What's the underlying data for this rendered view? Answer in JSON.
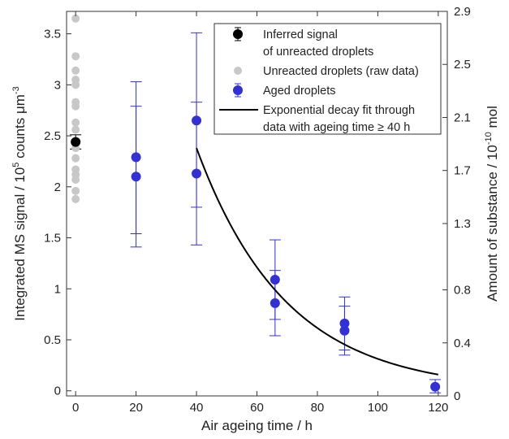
{
  "chart_data": {
    "type": "scatter",
    "title": "",
    "xlabel": "Air ageing time / h",
    "ylabel": "Integrated MS signal / 10^5 counts μm^-3",
    "ylabel_parts": {
      "pre": "Integrated MS signal / 10",
      "sup1": "5",
      "mid": " counts μm",
      "sup2": "-3"
    },
    "y2label": "Amount of substance / 10^-10 mol",
    "y2label_parts": {
      "pre": "Amount of substance / 10",
      "sup": "-10",
      "post": " mol"
    },
    "xlim": [
      -3,
      123
    ],
    "ylim": [
      -0.05,
      3.72
    ],
    "y2lim": [
      0,
      2.9
    ],
    "xticks": [
      {
        "value": 0,
        "label": "0"
      },
      {
        "value": 20,
        "label": "20"
      },
      {
        "value": 40,
        "label": "40"
      },
      {
        "value": 60,
        "label": "60"
      },
      {
        "value": 80,
        "label": "80"
      },
      {
        "value": 100,
        "label": "100"
      },
      {
        "value": 120,
        "label": "120"
      }
    ],
    "yticks": [
      {
        "value": 0,
        "label": "0"
      },
      {
        "value": 0.5,
        "label": "0.5"
      },
      {
        "value": 1,
        "label": "1"
      },
      {
        "value": 1.5,
        "label": "1.5"
      },
      {
        "value": 2,
        "label": "2"
      },
      {
        "value": 2.5,
        "label": "2.5"
      },
      {
        "value": 3,
        "label": "3"
      },
      {
        "value": 3.5,
        "label": "3.5"
      }
    ],
    "y2ticks": [
      {
        "value": 0,
        "label": "0"
      },
      {
        "value": 0.4,
        "label": "0.4"
      },
      {
        "value": 0.8,
        "label": "0.8"
      },
      {
        "value": 1.3,
        "label": "1.3"
      },
      {
        "value": 1.7,
        "label": "1.7"
      },
      {
        "value": 2.1,
        "label": "2.1"
      },
      {
        "value": 2.5,
        "label": "2.5"
      },
      {
        "value": 2.9,
        "label": "2.9"
      }
    ],
    "grid": false,
    "legend_position": "top-right",
    "series": [
      {
        "name": "Unreacted droplets (raw data)",
        "kind": "points",
        "color": "#c8c8c8",
        "points": [
          {
            "x": 0,
            "y": 3.65
          },
          {
            "x": 0,
            "y": 3.28
          },
          {
            "x": 0,
            "y": 3.14
          },
          {
            "x": 0,
            "y": 3.05
          },
          {
            "x": 0,
            "y": 3.0
          },
          {
            "x": 0,
            "y": 2.83
          },
          {
            "x": 0,
            "y": 2.79
          },
          {
            "x": 0,
            "y": 2.63
          },
          {
            "x": 0,
            "y": 2.56
          },
          {
            "x": 0,
            "y": 2.43
          },
          {
            "x": 0,
            "y": 2.38
          },
          {
            "x": 0,
            "y": 2.28
          },
          {
            "x": 0,
            "y": 2.17
          },
          {
            "x": 0,
            "y": 2.12
          },
          {
            "x": 0,
            "y": 2.07
          },
          {
            "x": 0,
            "y": 1.96
          },
          {
            "x": 0,
            "y": 1.88
          }
        ]
      },
      {
        "name": "Inferred signal of unreacted droplets",
        "legend_lines": [
          "Inferred signal",
          "of unreacted droplets"
        ],
        "kind": "points_with_error",
        "color": "#000000",
        "points": [
          {
            "x": 0,
            "y": 2.44,
            "err_low": 2.37,
            "err_high": 2.51
          }
        ]
      },
      {
        "name": "Aged droplets",
        "kind": "points_with_error",
        "color": "#3232d2",
        "points": [
          {
            "x": 20,
            "y": 2.29,
            "err_low": 1.54,
            "err_high": 3.03
          },
          {
            "x": 20,
            "y": 2.1,
            "err_low": 1.41,
            "err_high": 2.79
          },
          {
            "x": 40,
            "y": 2.65,
            "err_low": 1.8,
            "err_high": 3.51
          },
          {
            "x": 40,
            "y": 2.13,
            "err_low": 1.43,
            "err_high": 2.83
          },
          {
            "x": 66,
            "y": 1.09,
            "err_low": 0.7,
            "err_high": 1.48
          },
          {
            "x": 66,
            "y": 0.86,
            "err_low": 0.54,
            "err_high": 1.18
          },
          {
            "x": 89,
            "y": 0.66,
            "err_low": 0.4,
            "err_high": 0.92
          },
          {
            "x": 89,
            "y": 0.59,
            "err_low": 0.35,
            "err_high": 0.83
          },
          {
            "x": 119,
            "y": 0.04,
            "err_low": -0.02,
            "err_high": 0.11
          }
        ]
      },
      {
        "name": "Exponential decay fit through data with ageing time ≥ 40 h",
        "legend_lines": [
          "Exponential decay fit through",
          "data with ageing time ≥ 40 h"
        ],
        "kind": "fit_line",
        "color": "#000000",
        "model": {
          "x0": 40,
          "y0": 2.38,
          "rate": 0.0338,
          "x_start": 40,
          "x_end": 120
        }
      }
    ],
    "legend_order": [
      "Inferred signal of unreacted droplets",
      "Unreacted droplets (raw data)",
      "Aged droplets",
      "Exponential decay fit through data with ageing time ≥ 40 h"
    ]
  }
}
